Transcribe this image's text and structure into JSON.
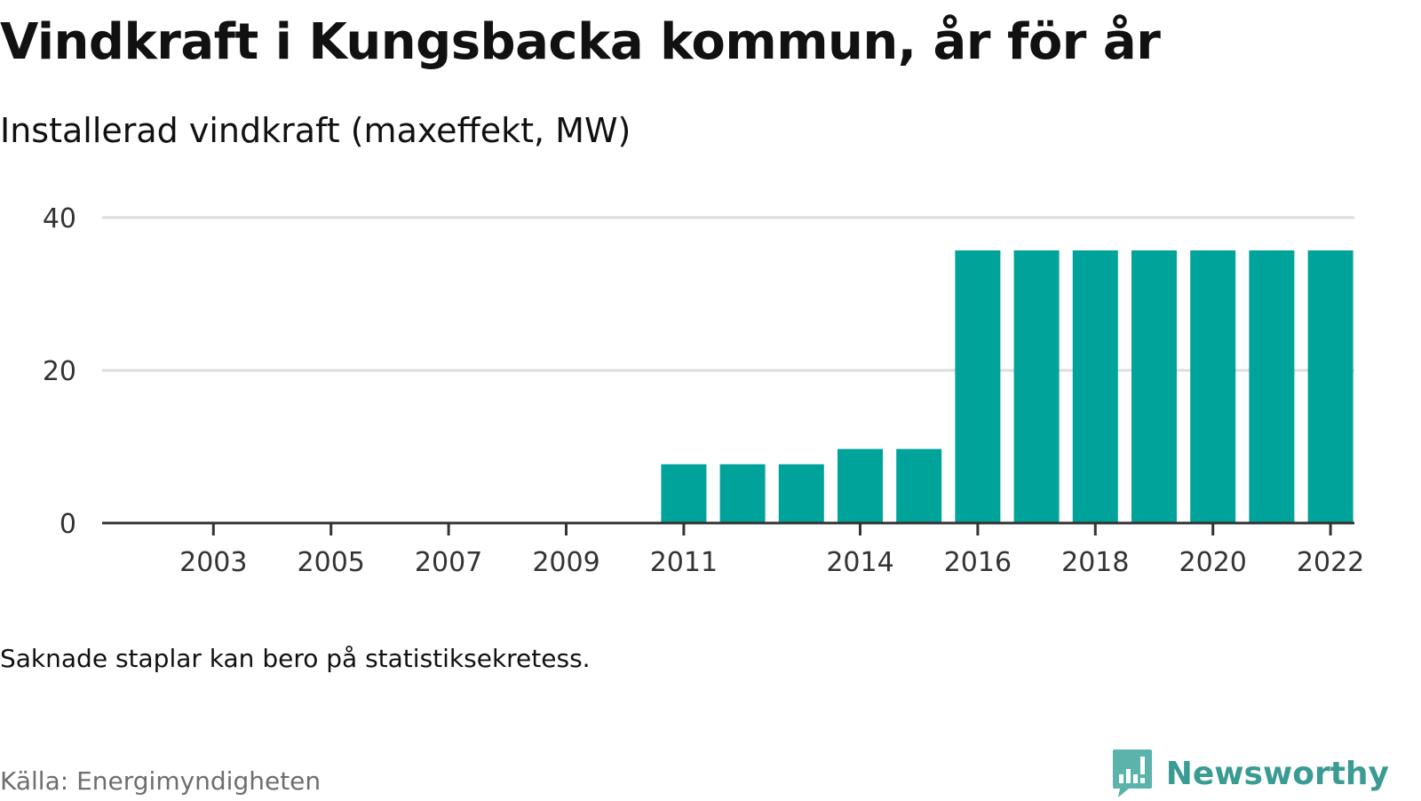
{
  "header": {
    "title": "Vindkraft i Kungsbacka kommun, år för år",
    "subtitle": "Installerad vindkraft (maxeffekt, MW)"
  },
  "footer": {
    "note": "Saknade staplar kan bero på statistiksekretess.",
    "source": "Källa: Energimyndigheten",
    "brand": "Newsworthy"
  },
  "colors": {
    "bar": "#00a39a",
    "grid": "#dddddd",
    "axis": "#333333",
    "brand": "#3a9b93"
  },
  "chart_data": {
    "type": "bar",
    "categories": [
      "2002",
      "2003",
      "2004",
      "2005",
      "2006",
      "2007",
      "2008",
      "2009",
      "2010",
      "2011",
      "2012",
      "2013",
      "2014",
      "2015",
      "2016",
      "2017",
      "2018",
      "2019",
      "2020",
      "2021",
      "2022"
    ],
    "values": [
      0,
      0,
      0,
      0,
      0,
      0,
      0,
      0,
      0,
      7.7,
      7.7,
      7.7,
      9.7,
      9.7,
      35.7,
      35.7,
      35.7,
      35.7,
      35.7,
      35.7,
      35.7
    ],
    "x_tick_labels": [
      "2003",
      "2005",
      "2007",
      "2009",
      "2011",
      "2014",
      "2016",
      "2018",
      "2020",
      "2022"
    ],
    "y_ticks": [
      0,
      20,
      40
    ],
    "ylim": [
      0,
      40
    ],
    "title": "Vindkraft i Kungsbacka kommun, år för år",
    "subtitle": "Installerad vindkraft (maxeffekt, MW)",
    "xlabel": "",
    "ylabel": "",
    "grid": true,
    "legend": "none"
  }
}
